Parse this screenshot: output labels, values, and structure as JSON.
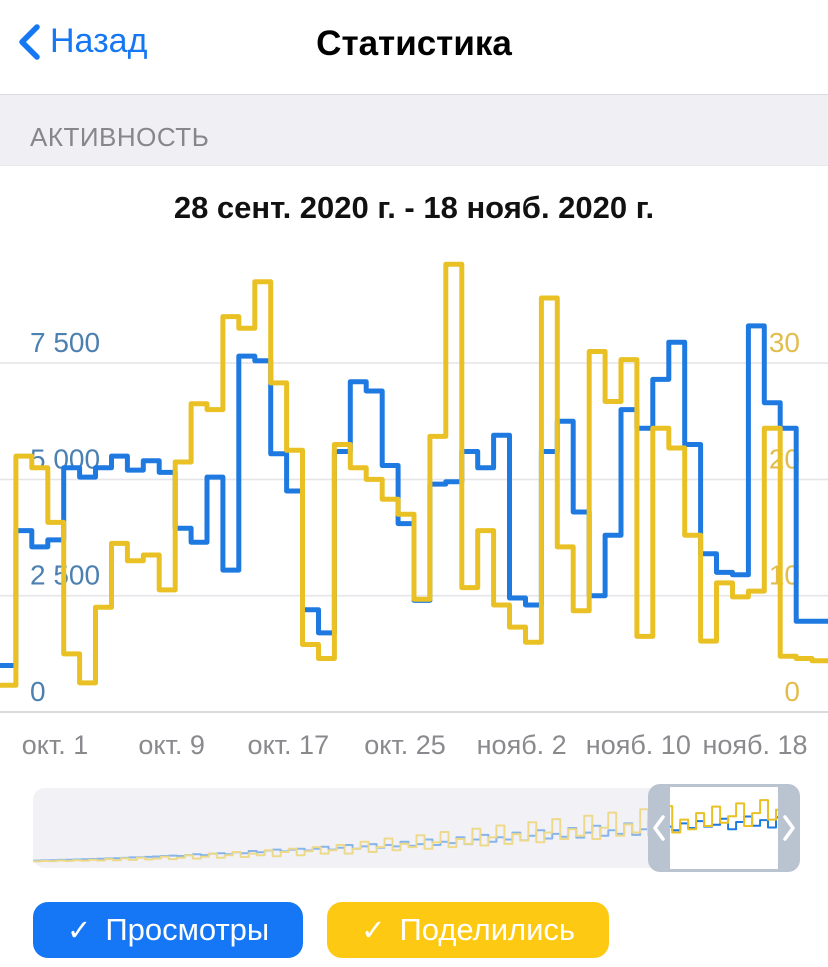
{
  "nav": {
    "back_label": "Назад",
    "title": "Статистика"
  },
  "section": {
    "label": "АКТИВНОСТЬ"
  },
  "colors": {
    "nav_blue": "#1677f2",
    "views_line": "#1e7ae0",
    "shares_line": "#e9c125",
    "views_button": "#1577f5",
    "shares_button": "#fdc913",
    "left_axis_label": "#4b80b1",
    "right_axis_label": "#e2bd4e",
    "grid": "#e6e6ea",
    "axis_base": "#d9d9de",
    "x_label": "#8a8a8e"
  },
  "legend": {
    "check_symbol": "✓",
    "buttons": [
      {
        "label": "Просмотры",
        "color": "#1577f5"
      },
      {
        "label": "Поделились",
        "color": "#fdc913"
      }
    ]
  },
  "chart_data": [
    {
      "type": "line",
      "style": "step",
      "title": "28 сент. 2020 г. - 18 нояб. 2020 г.",
      "date_range": [
        "28 сент. 2020",
        "18 нояб. 2020"
      ],
      "grid": true,
      "x_tick_labels": [
        "окт. 1",
        "окт. 9",
        "окт. 17",
        "окт. 25",
        "нояб. 2",
        "нояб. 10",
        "нояб. 18"
      ],
      "left_axis": {
        "ticks": [
          0,
          2500,
          5000,
          7500
        ],
        "tick_labels": [
          "0",
          "2 500",
          "5 000",
          "7 500"
        ],
        "lim": [
          0,
          10125
        ],
        "color": "#4b80b1"
      },
      "right_axis": {
        "ticks": [
          0,
          10,
          20,
          30
        ],
        "tick_labels": [
          "0",
          "10",
          "20",
          "30"
        ],
        "lim": [
          0,
          40.5
        ],
        "color": "#e2bd4e"
      },
      "series": [
        {
          "name": "Просмотры",
          "axis": "left",
          "color": "#1e7ae0",
          "values": [
            1000,
            3900,
            3550,
            3700,
            5250,
            5050,
            5250,
            5500,
            5200,
            5400,
            5150,
            3950,
            3650,
            5050,
            3050,
            7650,
            7550,
            5550,
            4750,
            2200,
            1700,
            5600,
            7100,
            6900,
            5300,
            4050,
            2400,
            4900,
            4950,
            5600,
            5250,
            5950,
            2450,
            2300,
            5600,
            6250,
            4300,
            2500,
            3800,
            6500,
            6100,
            7150,
            7950,
            5750,
            3400,
            3000,
            2950,
            8300,
            6650,
            6100,
            1950,
            1950
          ]
        },
        {
          "name": "Поделились",
          "axis": "right",
          "color": "#e9c125",
          "values": [
            2.3,
            22,
            21,
            16.3,
            5,
            2.5,
            9,
            14.5,
            13,
            13.5,
            10.5,
            21.5,
            26.5,
            26,
            34,
            33,
            37,
            28.3,
            22.5,
            5.8,
            4.6,
            23,
            21,
            20,
            18.3,
            17,
            9.7,
            23.7,
            38.5,
            10.7,
            15.6,
            9.2,
            7.3,
            6,
            35.6,
            14.2,
            8.7,
            31,
            26.7,
            30.3,
            6.5,
            24.4,
            22.7,
            15.2,
            6.1,
            11.1,
            9.9,
            10.4,
            24.4,
            4.8,
            4.6,
            4.4
          ]
        }
      ]
    },
    {
      "type": "line",
      "style": "step",
      "role": "minimap",
      "series": [
        {
          "name": "Просмотры",
          "color": "#1e7ae0",
          "values": [
            0.3,
            0.35,
            0.4,
            0.45,
            0.5,
            0.55,
            0.6,
            0.65,
            0.7,
            0.75,
            0.8,
            0.9,
            1,
            1.05,
            1.1,
            1.2,
            1.3,
            1.4,
            1.3,
            1.5,
            1.7,
            1.5,
            1.8,
            1.9,
            1.7,
            2.1,
            1.9,
            2.4,
            2.1,
            2.5,
            2.7,
            2.3,
            2.7,
            2.9,
            2.5,
            2.9,
            3.3,
            2.7,
            3.1,
            3.7,
            2.9,
            3.4,
            3.9,
            3.1,
            3.7,
            3.4,
            4.4,
            3.5,
            3.9,
            4.9,
            3.7,
            4.4,
            4.1,
            5.4,
            3.9,
            4.9,
            5.9,
            4.4,
            5.4,
            4.9,
            6.4,
            4.7,
            5.7,
            6.9,
            5.1,
            6.1,
            5.5,
            7.4,
            5.3,
            6.4,
            7.9,
            5.7,
            6.9,
            6.1,
            8.4,
            5.9,
            7.1,
            8.9,
            6.4,
            7.7,
            6.9,
            8.4,
            7.4,
            8.9,
            7.7,
            8.1,
            9.4,
            7.1,
            8.7,
            9.9,
            7.9,
            9.1,
            7.5,
            9.7,
            8.3,
            9.9
          ]
        },
        {
          "name": "Поделились",
          "color": "#e9c125",
          "values": [
            0.4,
            0.6,
            0.5,
            0.9,
            0.6,
            1.1,
            0.8,
            1.4,
            0.9,
            1.8,
            1.1,
            2.2,
            1.3,
            2.6,
            1.6,
            2.1,
            3.2,
            1.8,
            2.6,
            4.2,
            2.1,
            3.2,
            5.2,
            2.6,
            4.2,
            6.2,
            3.1,
            5.2,
            4.2,
            7.2,
            3.6,
            6.2,
            8.2,
            4.2,
            6.6,
            9.2,
            5.2,
            7.2,
            10.5,
            5.2,
            8.2,
            12.5,
            6.2,
            9.2,
            14.5,
            7.2,
            11.2,
            9.2,
            16.5,
            8.2,
            12.2,
            18.5,
            9.2,
            14.2,
            11.2,
            20.5,
            10.2,
            15.2,
            22.5,
            11.2,
            17.2,
            13.2,
            24.5,
            12.2,
            18.2,
            26.5,
            14.2,
            20.2,
            16.2,
            28.5,
            14.2,
            21.2,
            30.5,
            16.2,
            23.2,
            18.2,
            32.5,
            16.2,
            24.2,
            34.5,
            18.2,
            26.2,
            20.2,
            30.2,
            22.2,
            34.2,
            24.2,
            28.2,
            36.2,
            22.2,
            30.2,
            38.2,
            26.2,
            32.2,
            24.2,
            36.2
          ]
        }
      ]
    }
  ]
}
